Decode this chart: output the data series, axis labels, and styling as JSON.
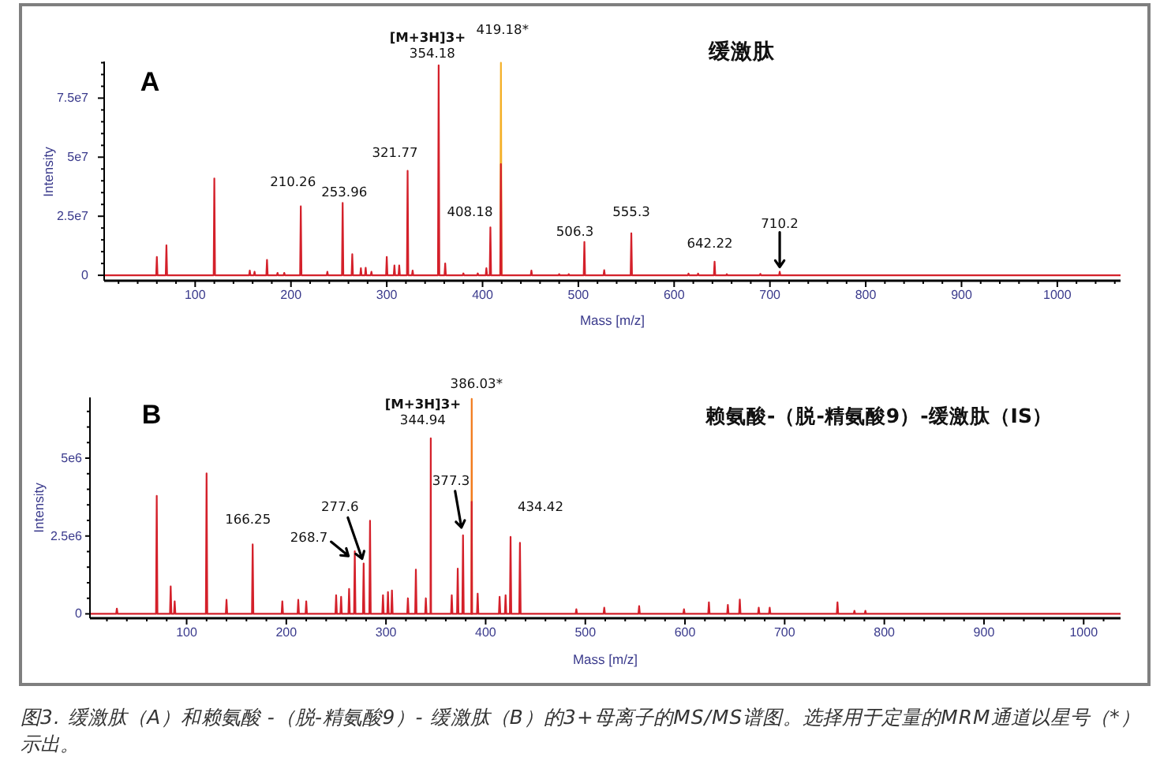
{
  "chart_data": [
    {
      "type": "line",
      "title": "缓激肽",
      "xlabel": "Mass [m/z]",
      "ylabel": "Intensity",
      "xlim": [
        5,
        1066
      ],
      "ylim": [
        -2300000,
        90500000
      ],
      "xticks": [
        {
          "value": 20,
          "label": null
        },
        {
          "value": 40,
          "label": null
        },
        {
          "value": 60,
          "label": null
        },
        {
          "value": 80,
          "label": null
        },
        100,
        {
          "value": 120,
          "label": null
        },
        {
          "value": 140,
          "label": null
        },
        {
          "value": 160,
          "label": null
        },
        {
          "value": 180,
          "label": null
        },
        200,
        {
          "value": 220,
          "label": null
        },
        {
          "value": 240,
          "label": null
        },
        {
          "value": 260,
          "label": null
        },
        {
          "value": 280,
          "label": null
        },
        300,
        {
          "value": 320,
          "label": null
        },
        {
          "value": 340,
          "label": null
        },
        {
          "value": 360,
          "label": null
        },
        {
          "value": 380,
          "label": null
        },
        400,
        {
          "value": 420,
          "label": null
        },
        {
          "value": 440,
          "label": null
        },
        {
          "value": 460,
          "label": null
        },
        {
          "value": 480,
          "label": null
        },
        500,
        {
          "value": 520,
          "label": null
        },
        {
          "value": 540,
          "label": null
        },
        {
          "value": 560,
          "label": null
        },
        {
          "value": 580,
          "label": null
        },
        600,
        {
          "value": 620,
          "label": null
        },
        {
          "value": 640,
          "label": null
        },
        {
          "value": 660,
          "label": null
        },
        {
          "value": 680,
          "label": null
        },
        700,
        {
          "value": 720,
          "label": null
        },
        {
          "value": 740,
          "label": null
        },
        {
          "value": 760,
          "label": null
        },
        {
          "value": 780,
          "label": null
        },
        800,
        {
          "value": 820,
          "label": null
        },
        {
          "value": 840,
          "label": null
        },
        {
          "value": 860,
          "label": null
        },
        {
          "value": 880,
          "label": null
        },
        900,
        {
          "value": 920,
          "label": null
        },
        {
          "value": 940,
          "label": null
        },
        {
          "value": 960,
          "label": null
        },
        {
          "value": 980,
          "label": null
        },
        1000,
        {
          "value": 1020,
          "label": null
        },
        {
          "value": 1040,
          "label": null
        },
        {
          "value": 1060,
          "label": null
        }
      ],
      "yticks": [
        0,
        {
          "value": 5000000,
          "label": null
        },
        {
          "value": 10000000,
          "label": null
        },
        {
          "value": 15000000,
          "label": null
        },
        {
          "value": 20000000,
          "label": null
        },
        {
          "value": 25000000,
          "label": "2.5e7"
        },
        {
          "value": 30000000,
          "label": null
        },
        {
          "value": 35000000,
          "label": null
        },
        {
          "value": 40000000,
          "label": null
        },
        {
          "value": 45000000,
          "label": null
        },
        {
          "value": 50000000,
          "label": "5e7"
        },
        {
          "value": 55000000,
          "label": null
        },
        {
          "value": 60000000,
          "label": null
        },
        {
          "value": 65000000,
          "label": null
        },
        {
          "value": 70000000,
          "label": null
        },
        {
          "value": 75000000,
          "label": "7.5e7"
        },
        {
          "value": 80000000,
          "label": null
        },
        {
          "value": 85000000,
          "label": null
        },
        {
          "value": 90000000,
          "label": null
        }
      ],
      "series": [
        {
          "color": "#f4b028",
          "x": [
            418.48,
            419.18,
            419.88
          ],
          "values": [
            0,
            90000000,
            0
          ]
        },
        {
          "color": "#d4202a",
          "x": [
            5,
            59.3,
            60,
            60.7,
            69.3,
            70,
            70.7,
            119.3,
            120,
            120.7,
            156.3,
            157,
            157.7,
            161.3,
            162,
            162.7,
            174.3,
            175,
            175.7,
            185.3,
            186,
            186.7,
            192.3,
            193,
            193.7,
            209.56,
            210.26,
            210.96,
            237.3,
            238,
            238.7,
            253.26,
            253.96,
            254.66,
            263.3,
            264,
            264.7,
            272.3,
            273,
            273.7,
            277.3,
            278,
            278.7,
            283.3,
            284,
            284.7,
            299.3,
            300,
            300.7,
            307.3,
            308,
            308.7,
            312.3,
            313,
            313.7,
            321.07,
            321.77,
            322.47,
            326.3,
            327,
            327.7,
            353.48,
            354.18,
            354.88,
            360.3,
            361,
            361.7,
            379.3,
            380,
            380.7,
            394.3,
            395,
            395.7,
            403.3,
            404,
            404.7,
            407.48,
            408.18,
            408.88,
            418.48,
            419.18,
            419.88,
            450.3,
            451,
            451.7,
            479.3,
            480,
            480.7,
            489.3,
            490,
            490.7,
            505.6,
            506.3,
            507,
            526.3,
            527,
            527.7,
            554.6,
            555.3,
            556,
            614.3,
            615,
            615.7,
            624.3,
            625,
            625.7,
            641.52,
            642.22,
            642.92,
            654.3,
            655,
            655.7,
            689.3,
            690,
            690.7,
            709.5,
            710.2,
            710.9,
            1066
          ],
          "values": [
            0,
            0,
            7800000,
            0,
            0,
            12700000,
            0,
            0,
            41000000,
            0,
            0,
            2000000,
            0,
            0,
            1500000,
            0,
            0,
            6500000,
            0,
            0,
            1000000,
            0,
            0,
            1000000,
            0,
            0,
            29200000,
            0,
            0,
            1500000,
            0,
            0,
            30600000,
            0,
            0,
            8900000,
            0,
            0,
            3000000,
            0,
            0,
            3200000,
            0,
            0,
            1500000,
            0,
            0,
            7800000,
            0,
            0,
            4200000,
            0,
            0,
            4200000,
            0,
            0,
            44200000,
            0,
            0,
            2000000,
            0,
            0,
            88900000,
            0,
            0,
            5000000,
            0,
            0,
            800000,
            0,
            0,
            800000,
            0,
            0,
            3000000,
            0,
            0,
            20300000,
            0,
            0,
            47100000,
            0,
            0,
            2000000,
            0,
            0,
            500000,
            0,
            0,
            500000,
            0,
            0,
            14100000,
            0,
            0,
            2200000,
            0,
            0,
            17800000,
            0,
            0,
            700000,
            0,
            0,
            700000,
            0,
            0,
            5800000,
            0,
            0,
            500000,
            0,
            0,
            600000,
            0,
            0,
            1500000,
            0,
            0
          ]
        }
      ],
      "annotations": [
        "A",
        {
          "text": "210.26",
          "x": 210.26,
          "y": 29200000
        },
        {
          "text": "253.96",
          "x": 253.96,
          "y": 30600000
        },
        {
          "text": "321.77",
          "x": 321.77,
          "y": 44200000
        },
        {
          "text": "354.18",
          "x": 354.18,
          "y": 88900000
        },
        {
          "text": "[M+3H]3+",
          "x": 354.18,
          "y": 88900000
        },
        {
          "text": "419.18*",
          "x": 419.18,
          "y": 90000000
        },
        {
          "text": "408.18",
          "x": 408.18,
          "y": 20300000
        },
        {
          "text": "506.3",
          "x": 506.3,
          "y": 14100000
        },
        {
          "text": "555.3",
          "x": 555.3,
          "y": 17800000
        },
        {
          "text": "642.22",
          "x": 642.22,
          "y": 5800000
        },
        {
          "text": "710.2",
          "x": 710.2,
          "y": 1500000
        }
      ]
    },
    {
      "type": "line",
      "title": "赖氨酸-（脱-精氨酸9）-缓激肽（IS）",
      "xlabel": "Mass [m/z]",
      "ylabel": "Intensity",
      "xlim": [
        3,
        1037
      ],
      "ylim": [
        -140000,
        6950000
      ],
      "xticks": [
        {
          "value": 20,
          "label": null
        },
        {
          "value": 40,
          "label": null
        },
        {
          "value": 60,
          "label": null
        },
        {
          "value": 80,
          "label": null
        },
        100,
        {
          "value": 120,
          "label": null
        },
        {
          "value": 140,
          "label": null
        },
        {
          "value": 160,
          "label": null
        },
        {
          "value": 180,
          "label": null
        },
        200,
        {
          "value": 220,
          "label": null
        },
        {
          "value": 240,
          "label": null
        },
        {
          "value": 260,
          "label": null
        },
        {
          "value": 280,
          "label": null
        },
        300,
        {
          "value": 320,
          "label": null
        },
        {
          "value": 340,
          "label": null
        },
        {
          "value": 360,
          "label": null
        },
        {
          "value": 380,
          "label": null
        },
        400,
        {
          "value": 420,
          "label": null
        },
        {
          "value": 440,
          "label": null
        },
        {
          "value": 460,
          "label": null
        },
        {
          "value": 480,
          "label": null
        },
        500,
        {
          "value": 520,
          "label": null
        },
        {
          "value": 540,
          "label": null
        },
        {
          "value": 560,
          "label": null
        },
        {
          "value": 580,
          "label": null
        },
        600,
        {
          "value": 620,
          "label": null
        },
        {
          "value": 640,
          "label": null
        },
        {
          "value": 660,
          "label": null
        },
        {
          "value": 680,
          "label": null
        },
        700,
        {
          "value": 720,
          "label": null
        },
        {
          "value": 740,
          "label": null
        },
        {
          "value": 760,
          "label": null
        },
        {
          "value": 780,
          "label": null
        },
        800,
        {
          "value": 820,
          "label": null
        },
        {
          "value": 840,
          "label": null
        },
        {
          "value": 860,
          "label": null
        },
        {
          "value": 880,
          "label": null
        },
        900,
        {
          "value": 920,
          "label": null
        },
        {
          "value": 940,
          "label": null
        },
        {
          "value": 960,
          "label": null
        },
        {
          "value": 980,
          "label": null
        },
        1000,
        {
          "value": 1020,
          "label": null
        }
      ],
      "yticks": [
        0,
        {
          "value": 500000,
          "label": null
        },
        {
          "value": 1000000,
          "label": null
        },
        {
          "value": 1500000,
          "label": null
        },
        {
          "value": 2000000,
          "label": null
        },
        {
          "value": 2500000,
          "label": "2.5e6"
        },
        {
          "value": 3000000,
          "label": null
        },
        {
          "value": 3500000,
          "label": null
        },
        {
          "value": 4000000,
          "label": null
        },
        {
          "value": 4500000,
          "label": null
        },
        {
          "value": 5000000,
          "label": "5e6"
        },
        {
          "value": 5500000,
          "label": null
        },
        {
          "value": 6000000,
          "label": null
        },
        {
          "value": 6500000,
          "label": null
        }
      ],
      "series": [
        {
          "color": "#f27b1c",
          "x": [
            385.73,
            386.03,
            386.33
          ],
          "values": [
            0,
            6900000,
            0
          ]
        },
        {
          "color": "#d4202a",
          "x": [
            3,
            29.3,
            30,
            30.7,
            69.3,
            70,
            70.7,
            83.3,
            84,
            84.7,
            87.3,
            88,
            88.7,
            119.3,
            120,
            120.7,
            139.3,
            140,
            140.7,
            165.55,
            166.25,
            166.95,
            195.3,
            196,
            196.7,
            211.3,
            212,
            212.7,
            219.3,
            220,
            220.7,
            249.3,
            250,
            250.7,
            254.3,
            255,
            255.7,
            262.3,
            263,
            263.7,
            268,
            268.7,
            269.4,
            276.9,
            277.6,
            278.3,
            283.3,
            284,
            284.7,
            296.3,
            297,
            297.7,
            301.3,
            302,
            302.7,
            305.3,
            306,
            306.7,
            321.3,
            322,
            322.7,
            329.3,
            330,
            330.7,
            339.3,
            340,
            340.7,
            344.64,
            344.94,
            345.24,
            365.3,
            366,
            366.7,
            371.3,
            372,
            372.7,
            376.6,
            377.3,
            378,
            385.73,
            386.03,
            386.33,
            391.3,
            392,
            392.7,
            413.3,
            414,
            414.7,
            419.3,
            420,
            420.7,
            424.3,
            425,
            425.7,
            433.72,
            434.42,
            435.12,
            490.3,
            491,
            491.7,
            518.3,
            519,
            519.7,
            553.3,
            554,
            554.7,
            598.3,
            599,
            599.7,
            623.3,
            624,
            624.7,
            642.3,
            643,
            643.7,
            654.3,
            655,
            655.7,
            673.3,
            674,
            674.7,
            684.3,
            685,
            685.7,
            752.3,
            753,
            753.7,
            769.3,
            770,
            770.7,
            780.3,
            781,
            781.7,
            1037
          ],
          "values": [
            0,
            0,
            170000,
            0,
            0,
            3790000,
            0,
            0,
            880000,
            0,
            0,
            400000,
            0,
            0,
            4510000,
            0,
            0,
            450000,
            0,
            0,
            2230000,
            0,
            0,
            400000,
            0,
            0,
            450000,
            0,
            0,
            400000,
            0,
            0,
            600000,
            0,
            0,
            550000,
            0,
            0,
            800000,
            0,
            0,
            2010000,
            0,
            0,
            1620000,
            0,
            0,
            2990000,
            0,
            0,
            600000,
            0,
            0,
            700000,
            0,
            0,
            750000,
            0,
            0,
            500000,
            0,
            0,
            1420000,
            0,
            0,
            500000,
            0,
            0,
            5640000,
            0,
            0,
            600000,
            0,
            0,
            1450000,
            0,
            0,
            2520000,
            0,
            0,
            3600000,
            0,
            0,
            650000,
            0,
            0,
            550000,
            0,
            0,
            600000,
            0,
            0,
            2470000,
            0,
            0,
            2280000,
            0,
            0,
            150000,
            0,
            0,
            200000,
            0,
            0,
            250000,
            0,
            0,
            150000,
            0,
            0,
            370000,
            0,
            0,
            290000,
            0,
            0,
            460000,
            0,
            0,
            200000,
            0,
            0,
            200000,
            0,
            0,
            370000,
            0,
            0,
            100000,
            0,
            0,
            100000,
            0,
            0
          ]
        }
      ],
      "annotations": [
        "B",
        {
          "text": "166.25",
          "x": 166.25,
          "y": 2230000
        },
        {
          "text": "268.7",
          "x": 268.7,
          "y": 2010000
        },
        {
          "text": "277.6",
          "x": 277.6,
          "y": 1620000
        },
        {
          "text": "344.94",
          "x": 344.94,
          "y": 5640000
        },
        {
          "text": "[M+3H]3+",
          "x": 344.94,
          "y": 5640000
        },
        {
          "text": "386.03*",
          "x": 386.03,
          "y": 6900000
        },
        {
          "text": "377.3",
          "x": 377.3,
          "y": 2520000
        },
        {
          "text": "434.42",
          "x": 434.42,
          "y": 2280000
        },
        "图3. 缓激肽（A）和赖氨酸 -（脱-精氨酸9）- 缓激肽（B）的3+母离子的MS/MS谱图。选择用于定量的MRM通道以星号（*）示出。"
      ]
    }
  ]
}
